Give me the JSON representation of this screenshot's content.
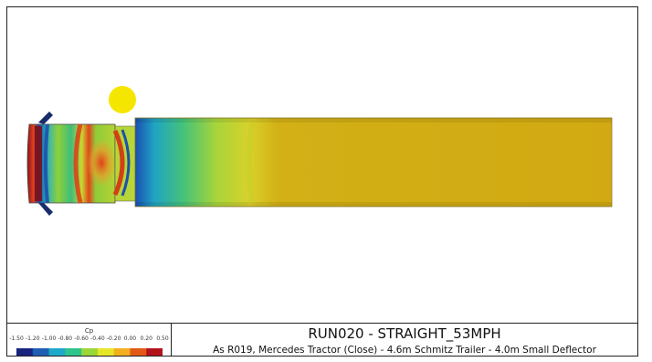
{
  "scene": {
    "marker_color": "#f5e600",
    "trailer_color": "#d2a912",
    "colormap": [
      "#1a237e",
      "#1e5fb4",
      "#1fa9c9",
      "#2fc48c",
      "#9ad636",
      "#e6e629",
      "#f2b01e",
      "#e25a18",
      "#b3121c"
    ]
  },
  "legend": {
    "title": "Cp",
    "ticks": [
      "-1.50",
      "-1.20",
      "-1.00",
      "-0.80",
      "-0.60",
      "-0.40",
      "-0.20",
      "0.00",
      "0.20",
      "0.50"
    ]
  },
  "run": {
    "title": "RUN020 - STRAIGHT_53MPH",
    "subtitle": "As R019, Mercedes Tractor (Close) - 4.6m Schmitz Trailer - 4.0m Small Deflector"
  }
}
